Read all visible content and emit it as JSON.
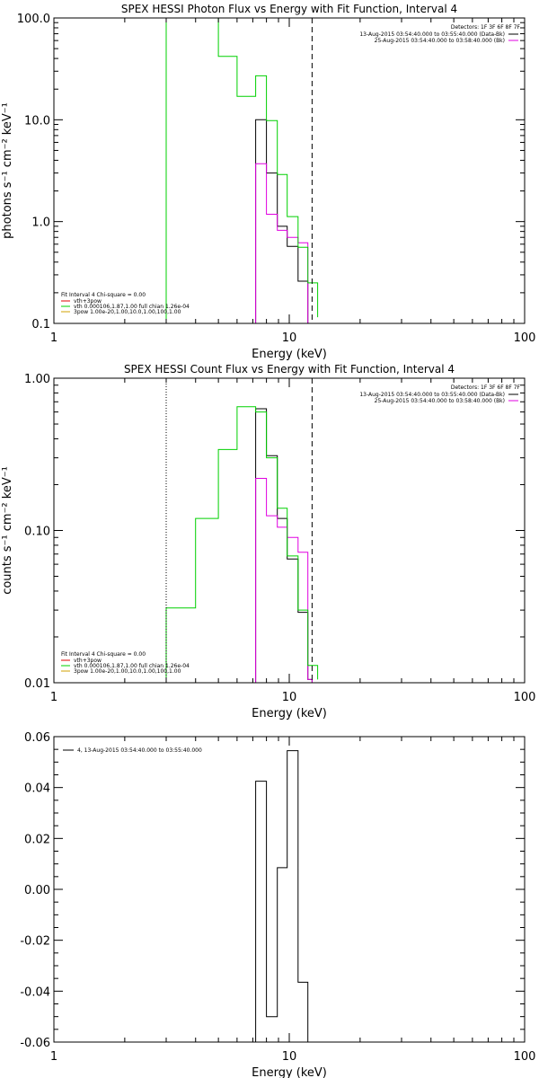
{
  "chart_data": [
    {
      "type": "line",
      "title": "SPEX HESSI Photon Flux vs Energy with Fit Function, Interval 4",
      "xlabel": "Energy (keV)",
      "ylabel": "photons s⁻¹ cm⁻² keV⁻¹",
      "xscale": "log",
      "yscale": "log",
      "xlim": [
        1,
        100
      ],
      "ylim": [
        0.1,
        100
      ],
      "x_ticks": [
        1,
        10,
        100
      ],
      "x_tick_labels": [
        "1",
        "10",
        "100"
      ],
      "y_ticks": [
        0.1,
        1,
        10,
        100
      ],
      "y_tick_labels": [
        "0.1",
        "1.0",
        "10.0",
        "100.0"
      ],
      "grid": false,
      "vlines": [
        {
          "x": 3.0,
          "style": "dotted"
        },
        {
          "x": 12.5,
          "style": "dashed"
        }
      ],
      "detector_text": "Detectors: 1F 3F 6F 8F 7F",
      "date_lines": [
        {
          "text": "13-Aug-2015 03:54:40.000 to 03:55:40.000 (Data-Bk)",
          "color": "#000000"
        },
        {
          "text": "25-Aug-2015 03:54:40.000 to 03:58:40.000 (Bk)",
          "color": "#e000e0"
        }
      ],
      "fit_text": "Fit Interval 4   Chi-square = 0.00",
      "legend": [
        {
          "text": "vth+3pow",
          "color": "#e00000"
        },
        {
          "text": "vth 0.000106,1.87,1.00   full chian 1.26e-04",
          "color": "#00d000"
        },
        {
          "text": "3pow 1.00e-20,1.00,10.0,1.00,100,1.00",
          "color": "#d0a000"
        }
      ],
      "series": [
        {
          "color": "#000000",
          "edges": [
            7.2,
            8.0,
            8.9,
            9.8,
            10.9,
            12.0,
            12.5
          ],
          "values": [
            10.0,
            3.0,
            0.9,
            0.57,
            0.26,
            0.1
          ]
        },
        {
          "color": "#e000e0",
          "edges": [
            7.2,
            8.0,
            8.9,
            9.8,
            10.9,
            12.0,
            12.5
          ],
          "values": [
            3.7,
            1.18,
            0.82,
            0.7,
            0.62,
            0.1
          ]
        },
        {
          "color": "#00d000",
          "edges": [
            3.0,
            4.0,
            5.0,
            6.0,
            7.2,
            8.0,
            8.9,
            9.8,
            10.9,
            12.0,
            13.2
          ],
          "values": [
            100,
            100,
            42,
            17,
            27,
            9.8,
            2.9,
            1.12,
            0.56,
            0.25,
            0.115
          ]
        }
      ]
    },
    {
      "type": "line",
      "title": "SPEX HESSI Count Flux vs Energy with Fit Function, Interval 4",
      "xlabel": "Energy (keV)",
      "ylabel": "counts s⁻¹ cm⁻² keV⁻¹",
      "xscale": "log",
      "yscale": "log",
      "xlim": [
        1,
        100
      ],
      "ylim": [
        0.01,
        1
      ],
      "x_ticks": [
        1,
        10,
        100
      ],
      "x_tick_labels": [
        "1",
        "10",
        "100"
      ],
      "y_ticks": [
        0.01,
        0.1,
        1
      ],
      "y_tick_labels": [
        "0.01",
        "0.10",
        "1.00"
      ],
      "grid": false,
      "vlines": [
        {
          "x": 3.0,
          "style": "dotted"
        },
        {
          "x": 12.5,
          "style": "dashed"
        }
      ],
      "detector_text": "Detectors: 1F 3F 6F 8F 7F",
      "date_lines": [
        {
          "text": "13-Aug-2015 03:54:40.000 to 03:55:40.000 (Data-Bk)",
          "color": "#000000"
        },
        {
          "text": "25-Aug-2015 03:54:40.000 to 03:58:40.000 (Bk)",
          "color": "#e000e0"
        }
      ],
      "fit_text": "Fit Interval 4   Chi-square = 0.00",
      "legend": [
        {
          "text": "vth+3pow",
          "color": "#e00000"
        },
        {
          "text": "vth 0.000106,1.87,1.00   full chian 1.26e-04",
          "color": "#00d000"
        },
        {
          "text": "3pow 1.00e-20,1.00,10.0,1.00,100,1.00",
          "color": "#d0a000"
        }
      ],
      "series": [
        {
          "color": "#000000",
          "edges": [
            7.2,
            8.0,
            8.9,
            9.8,
            10.9,
            12.0,
            12.5
          ],
          "values": [
            0.63,
            0.31,
            0.12,
            0.065,
            0.029,
            0.0105
          ]
        },
        {
          "color": "#e000e0",
          "edges": [
            7.2,
            8.0,
            8.9,
            9.8,
            10.9,
            12.0,
            12.5
          ],
          "values": [
            0.22,
            0.125,
            0.105,
            0.09,
            0.072,
            0.0105
          ]
        },
        {
          "color": "#00d000",
          "edges": [
            3.0,
            4.0,
            5.0,
            6.0,
            7.2,
            8.0,
            8.9,
            9.8,
            10.9,
            12.0,
            13.2
          ],
          "values": [
            0.031,
            0.12,
            0.34,
            0.65,
            0.6,
            0.3,
            0.14,
            0.068,
            0.03,
            0.013,
            0.0105
          ]
        }
      ]
    },
    {
      "type": "line",
      "title": "",
      "xlabel": "Energy (keV)",
      "ylabel": "",
      "xscale": "log",
      "yscale": "linear",
      "xlim": [
        1,
        100
      ],
      "ylim": [
        -0.06,
        0.06
      ],
      "x_ticks": [
        1,
        10,
        100
      ],
      "x_tick_labels": [
        "1",
        "10",
        "100"
      ],
      "y_ticks": [
        -0.06,
        -0.04,
        -0.02,
        0.0,
        0.02,
        0.04,
        0.06
      ],
      "y_tick_labels": [
        "-0.06",
        "-0.04",
        "-0.02",
        "0.00",
        "0.02",
        "0.04",
        "0.06"
      ],
      "grid": false,
      "legend": [
        {
          "text": "4, 13-Aug-2015 03:54:40.000 to 03:55:40.000",
          "color": "#000000"
        }
      ],
      "series": [
        {
          "color": "#000000",
          "edges": [
            7.2,
            8.0,
            8.9,
            9.8,
            10.9,
            12.0
          ],
          "values": [
            0.0425,
            -0.05,
            0.0085,
            0.0545,
            -0.0365
          ]
        }
      ]
    }
  ]
}
